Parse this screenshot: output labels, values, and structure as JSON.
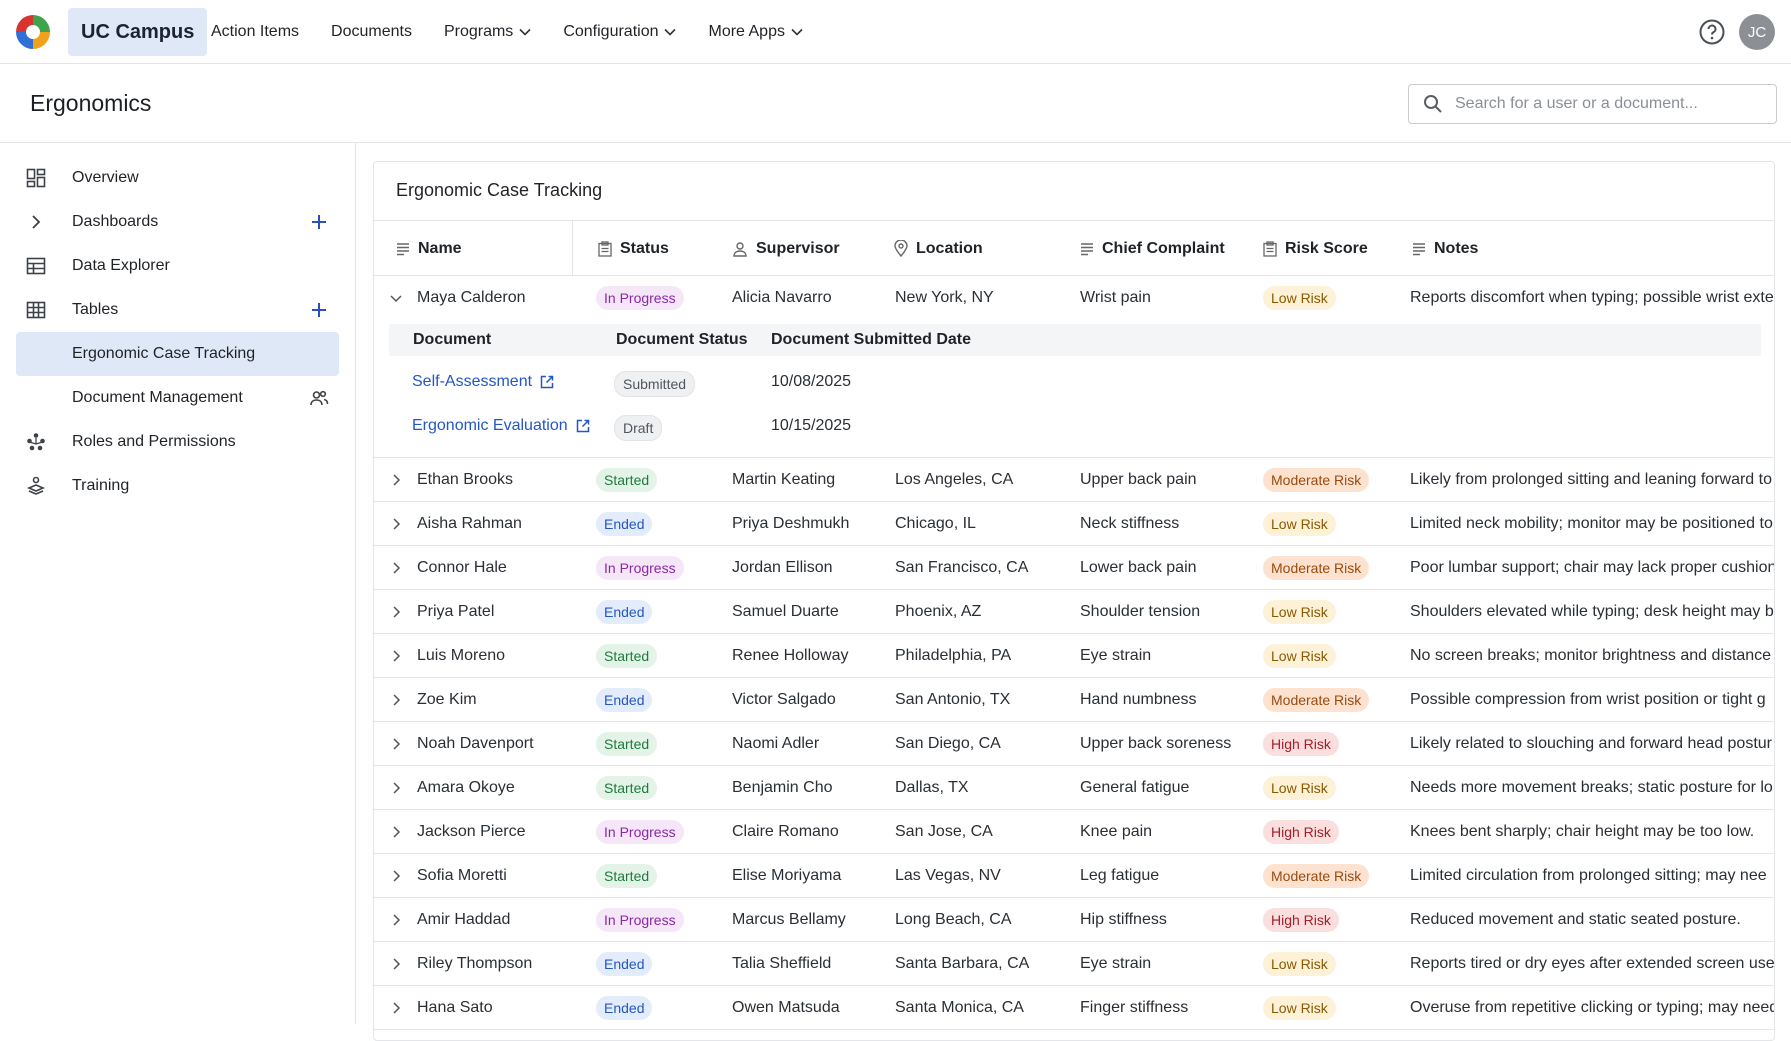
{
  "app": {
    "brand": "UC Campus",
    "user_initials": "JC"
  },
  "topnav": [
    {
      "label": "Action Items",
      "dropdown": false
    },
    {
      "label": "Documents",
      "dropdown": false
    },
    {
      "label": "Programs",
      "dropdown": true
    },
    {
      "label": "Configuration",
      "dropdown": true
    },
    {
      "label": "More Apps",
      "dropdown": true
    }
  ],
  "header": {
    "title": "Ergonomics",
    "search_placeholder": "Search for a user or a document..."
  },
  "sidebar": {
    "items": [
      {
        "label": "Overview",
        "icon": "dashboard-grid-icon"
      },
      {
        "label": "Dashboards",
        "icon": "chevron-right-icon",
        "add": true
      },
      {
        "label": "Data Explorer",
        "icon": "table-icon"
      },
      {
        "label": "Tables",
        "icon": "grid-icon",
        "add": true
      },
      {
        "label": "Ergonomic Case Tracking",
        "active": true
      },
      {
        "label": "Document Management",
        "icon_right": "users-icon"
      },
      {
        "label": "Roles and Permissions",
        "icon": "org-icon"
      },
      {
        "label": "Training",
        "icon": "training-icon"
      }
    ]
  },
  "table": {
    "title": "Ergonomic Case Tracking",
    "columns": [
      "Name",
      "Status",
      "Supervisor",
      "Location",
      "Chief Complaint",
      "Risk Score",
      "Notes"
    ],
    "expanded": {
      "columns": [
        "Document",
        "Document Status",
        "Document Submitted Date"
      ],
      "docs": [
        {
          "name": "Self-Assessment",
          "status": "Submitted",
          "date": "10/08/2025"
        },
        {
          "name": "Ergonomic Evaluation",
          "status": "Draft",
          "date": "10/15/2025"
        }
      ]
    },
    "rows": [
      {
        "name": "Maya Calderon",
        "status": "In Progress",
        "supervisor": "Alicia Navarro",
        "location": "New York, NY",
        "complaint": "Wrist pain",
        "risk": "Low Risk",
        "notes": "Reports discomfort when typing; possible wrist exte"
      },
      {
        "name": "Ethan Brooks",
        "status": "Started",
        "supervisor": "Martin Keating",
        "location": "Los Angeles, CA",
        "complaint": "Upper back pain",
        "risk": "Moderate Risk",
        "notes": "Likely from prolonged sitting and leaning forward to"
      },
      {
        "name": "Aisha Rahman",
        "status": "Ended",
        "supervisor": "Priya Deshmukh",
        "location": "Chicago, IL",
        "complaint": "Neck stiffness",
        "risk": "Low Risk",
        "notes": "Limited neck mobility; monitor may be positioned to"
      },
      {
        "name": "Connor Hale",
        "status": "In Progress",
        "supervisor": "Jordan Ellison",
        "location": "San Francisco, CA",
        "complaint": "Lower back pain",
        "risk": "Moderate Risk",
        "notes": "Poor lumbar support; chair may lack proper cushion"
      },
      {
        "name": "Priya Patel",
        "status": "Ended",
        "supervisor": "Samuel Duarte",
        "location": "Phoenix, AZ",
        "complaint": "Shoulder tension",
        "risk": "Low Risk",
        "notes": "Shoulders elevated while typing; desk height may be"
      },
      {
        "name": "Luis Moreno",
        "status": "Started",
        "supervisor": "Renee Holloway",
        "location": "Philadelphia, PA",
        "complaint": "Eye strain",
        "risk": "Low Risk",
        "notes": "No screen breaks; monitor brightness and distance"
      },
      {
        "name": "Zoe Kim",
        "status": "Ended",
        "supervisor": "Victor Salgado",
        "location": "San Antonio, TX",
        "complaint": "Hand numbness",
        "risk": "Moderate Risk",
        "notes": "Possible compression from wrist position or tight g"
      },
      {
        "name": "Noah Davenport",
        "status": "Started",
        "supervisor": "Naomi Adler",
        "location": "San Diego, CA",
        "complaint": "Upper back soreness",
        "risk": "High Risk",
        "notes": "Likely related to slouching and forward head postur"
      },
      {
        "name": "Amara Okoye",
        "status": "Started",
        "supervisor": "Benjamin Cho",
        "location": "Dallas, TX",
        "complaint": "General fatigue",
        "risk": "Low Risk",
        "notes": "Needs more movement breaks; static posture for lo"
      },
      {
        "name": "Jackson Pierce",
        "status": "In Progress",
        "supervisor": "Claire Romano",
        "location": "San Jose, CA",
        "complaint": "Knee pain",
        "risk": "High Risk",
        "notes": "Knees bent sharply; chair height may be too low."
      },
      {
        "name": "Sofia Moretti",
        "status": "Started",
        "supervisor": "Elise Moriyama",
        "location": "Las Vegas, NV",
        "complaint": "Leg fatigue",
        "risk": "Moderate Risk",
        "notes": "Limited circulation from prolonged sitting; may nee"
      },
      {
        "name": "Amir Haddad",
        "status": "In Progress",
        "supervisor": "Marcus Bellamy",
        "location": "Long Beach, CA",
        "complaint": "Hip stiffness",
        "risk": "High Risk",
        "notes": "Reduced movement and static seated posture."
      },
      {
        "name": "Riley Thompson",
        "status": "Ended",
        "supervisor": "Talia Sheffield",
        "location": "Santa Barbara, CA",
        "complaint": "Eye strain",
        "risk": "Low Risk",
        "notes": "Reports tired or dry eyes after extended screen use."
      },
      {
        "name": "Hana Sato",
        "status": "Ended",
        "supervisor": "Owen Matsuda",
        "location": "Santa Monica, CA",
        "complaint": "Finger stiffness",
        "risk": "Low Risk",
        "notes": "Overuse from repetitive clicking or typing; may need"
      }
    ]
  }
}
